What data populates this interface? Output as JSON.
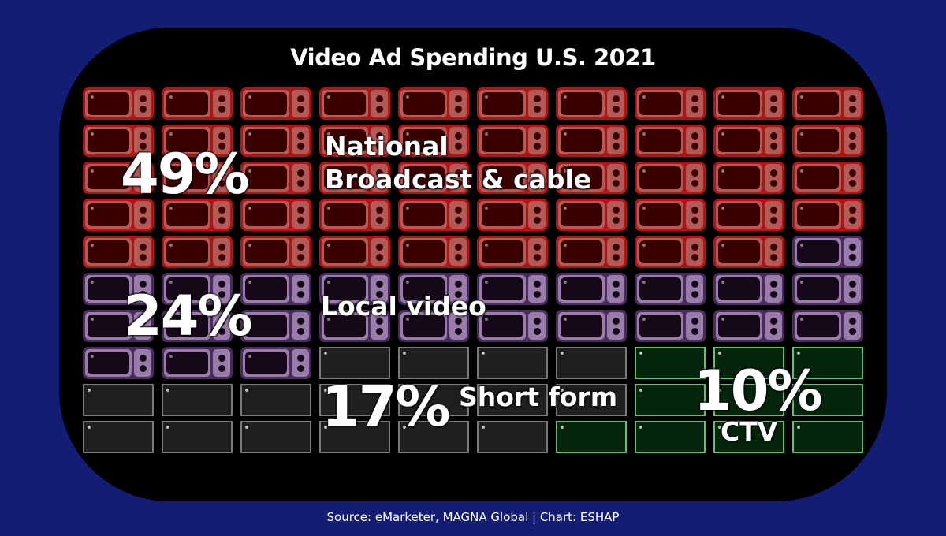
{
  "title": "Video Ad Spending U.S. 2021",
  "source": "Source: eMarketer, MAGNA Global | Chart: ESHAP",
  "labels": {
    "national_pct": "49%",
    "national_line1": "National",
    "national_line2": "Broadcast & cable",
    "local_pct": "24%",
    "local_label": "Local video",
    "short_pct": "17%",
    "short_label": "Short form",
    "ctv_pct": "10%",
    "ctv_label": "CTV"
  },
  "colors": {
    "background": "#141d74",
    "panel": "#000000",
    "national": "#b01414",
    "local": "#9a7cab",
    "short_form": "#7a7a7a",
    "ctv": "#5cc27a"
  },
  "chart_data": {
    "type": "waffle",
    "title": "Video Ad Spending U.S. 2021",
    "grid": {
      "rows": 10,
      "cols": 10
    },
    "categories": [
      "National Broadcast & cable",
      "Local video",
      "Short form",
      "CTV"
    ],
    "values": [
      49,
      24,
      17,
      10
    ],
    "unit": "%",
    "icons": [
      "classic-tv",
      "classic-tv",
      "flat-tv",
      "flat-tv"
    ],
    "cell_layout": [
      [
        "N",
        "N",
        "N",
        "N",
        "N",
        "N",
        "N",
        "N",
        "N",
        "N"
      ],
      [
        "N",
        "N",
        "N",
        "N",
        "N",
        "N",
        "N",
        "N",
        "N",
        "N"
      ],
      [
        "N",
        "N",
        "N",
        "N",
        "N",
        "N",
        "N",
        "N",
        "N",
        "N"
      ],
      [
        "N",
        "N",
        "N",
        "N",
        "N",
        "N",
        "N",
        "N",
        "N",
        "N"
      ],
      [
        "N",
        "N",
        "N",
        "N",
        "N",
        "N",
        "N",
        "N",
        "N",
        "L"
      ],
      [
        "L",
        "L",
        "L",
        "L",
        "L",
        "L",
        "L",
        "L",
        "L",
        "L"
      ],
      [
        "L",
        "L",
        "L",
        "L",
        "L",
        "L",
        "L",
        "L",
        "L",
        "L"
      ],
      [
        "L",
        "L",
        "L",
        "S",
        "S",
        "S",
        "S",
        "C",
        "C",
        "C"
      ],
      [
        "S",
        "S",
        "S",
        "S",
        "S",
        "S",
        "S",
        "C",
        "C",
        "C"
      ],
      [
        "S",
        "S",
        "S",
        "S",
        "S",
        "S",
        "C",
        "C",
        "C",
        "C"
      ]
    ],
    "source": "Source: eMarketer, MAGNA Global | Chart: ESHAP"
  }
}
